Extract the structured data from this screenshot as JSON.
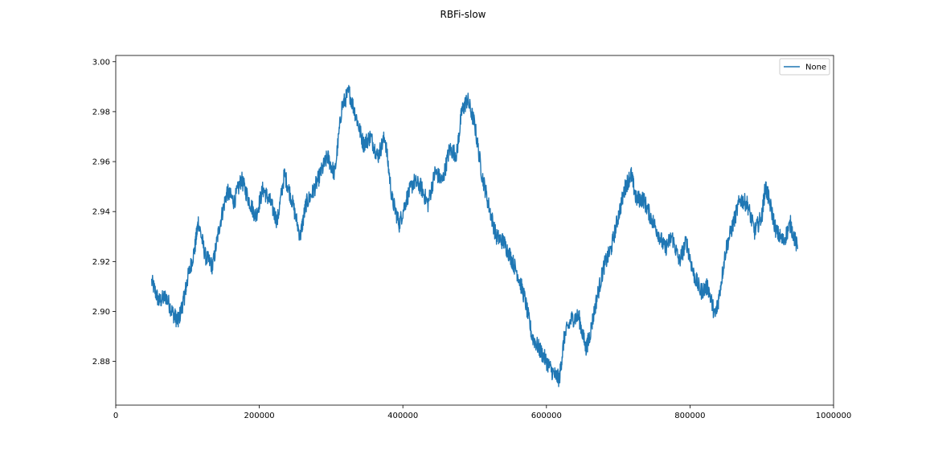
{
  "chart_data": {
    "type": "line",
    "title": "RBFi-slow",
    "xlabel": "",
    "ylabel": "",
    "xlim": [
      0,
      1000000
    ],
    "ylim": [
      2.8625,
      3.0025
    ],
    "x_ticks": [
      0,
      200000,
      400000,
      600000,
      800000,
      1000000
    ],
    "x_tick_labels": [
      "0",
      "200000",
      "400000",
      "600000",
      "800000",
      "1000000"
    ],
    "y_ticks": [
      2.88,
      2.9,
      2.92,
      2.94,
      2.96,
      2.98,
      3.0
    ],
    "y_tick_labels": [
      "2.88",
      "2.90",
      "2.92",
      "2.94",
      "2.96",
      "2.98",
      "3.00"
    ],
    "grid": false,
    "legend_position": "top-right",
    "series": [
      {
        "name": "None",
        "color": "#1f77b4",
        "x": [
          50000,
          60000,
          70000,
          80000,
          87000,
          95000,
          100000,
          110000,
          115000,
          125000,
          135000,
          145000,
          155000,
          165000,
          175000,
          185000,
          195000,
          205000,
          215000,
          225000,
          235000,
          245000,
          257000,
          265000,
          275000,
          285000,
          295000,
          305000,
          315000,
          325000,
          335000,
          345000,
          355000,
          365000,
          375000,
          385000,
          395000,
          405000,
          415000,
          425000,
          435000,
          445000,
          455000,
          465000,
          475000,
          482000,
          490000,
          500000,
          510000,
          520000,
          530000,
          540000,
          550000,
          560000,
          570000,
          580000,
          590000,
          600000,
          610000,
          618000,
          625000,
          635000,
          645000,
          655000,
          660000,
          670000,
          680000,
          690000,
          700000,
          710000,
          718000,
          725000,
          735000,
          745000,
          755000,
          765000,
          775000,
          785000,
          795000,
          805000,
          815000,
          825000,
          835000,
          840000,
          850000,
          860000,
          870000,
          880000,
          890000,
          900000,
          905000,
          910000,
          920000,
          930000,
          940000,
          950000
        ],
        "y": [
          2.912,
          2.904,
          2.906,
          2.899,
          2.896,
          2.905,
          2.913,
          2.925,
          2.936,
          2.922,
          2.918,
          2.935,
          2.948,
          2.944,
          2.953,
          2.945,
          2.938,
          2.949,
          2.944,
          2.936,
          2.955,
          2.945,
          2.93,
          2.943,
          2.948,
          2.955,
          2.962,
          2.955,
          2.982,
          2.988,
          2.978,
          2.967,
          2.97,
          2.962,
          2.97,
          2.945,
          2.935,
          2.945,
          2.952,
          2.95,
          2.943,
          2.956,
          2.952,
          2.965,
          2.963,
          2.98,
          2.985,
          2.975,
          2.955,
          2.942,
          2.93,
          2.928,
          2.922,
          2.915,
          2.905,
          2.89,
          2.885,
          2.88,
          2.875,
          2.873,
          2.89,
          2.897,
          2.898,
          2.885,
          2.89,
          2.905,
          2.918,
          2.925,
          2.938,
          2.95,
          2.955,
          2.945,
          2.945,
          2.938,
          2.932,
          2.925,
          2.93,
          2.92,
          2.928,
          2.915,
          2.908,
          2.91,
          2.898,
          2.905,
          2.925,
          2.935,
          2.945,
          2.943,
          2.932,
          2.938,
          2.95,
          2.945,
          2.932,
          2.928,
          2.935,
          2.925
        ]
      }
    ]
  }
}
